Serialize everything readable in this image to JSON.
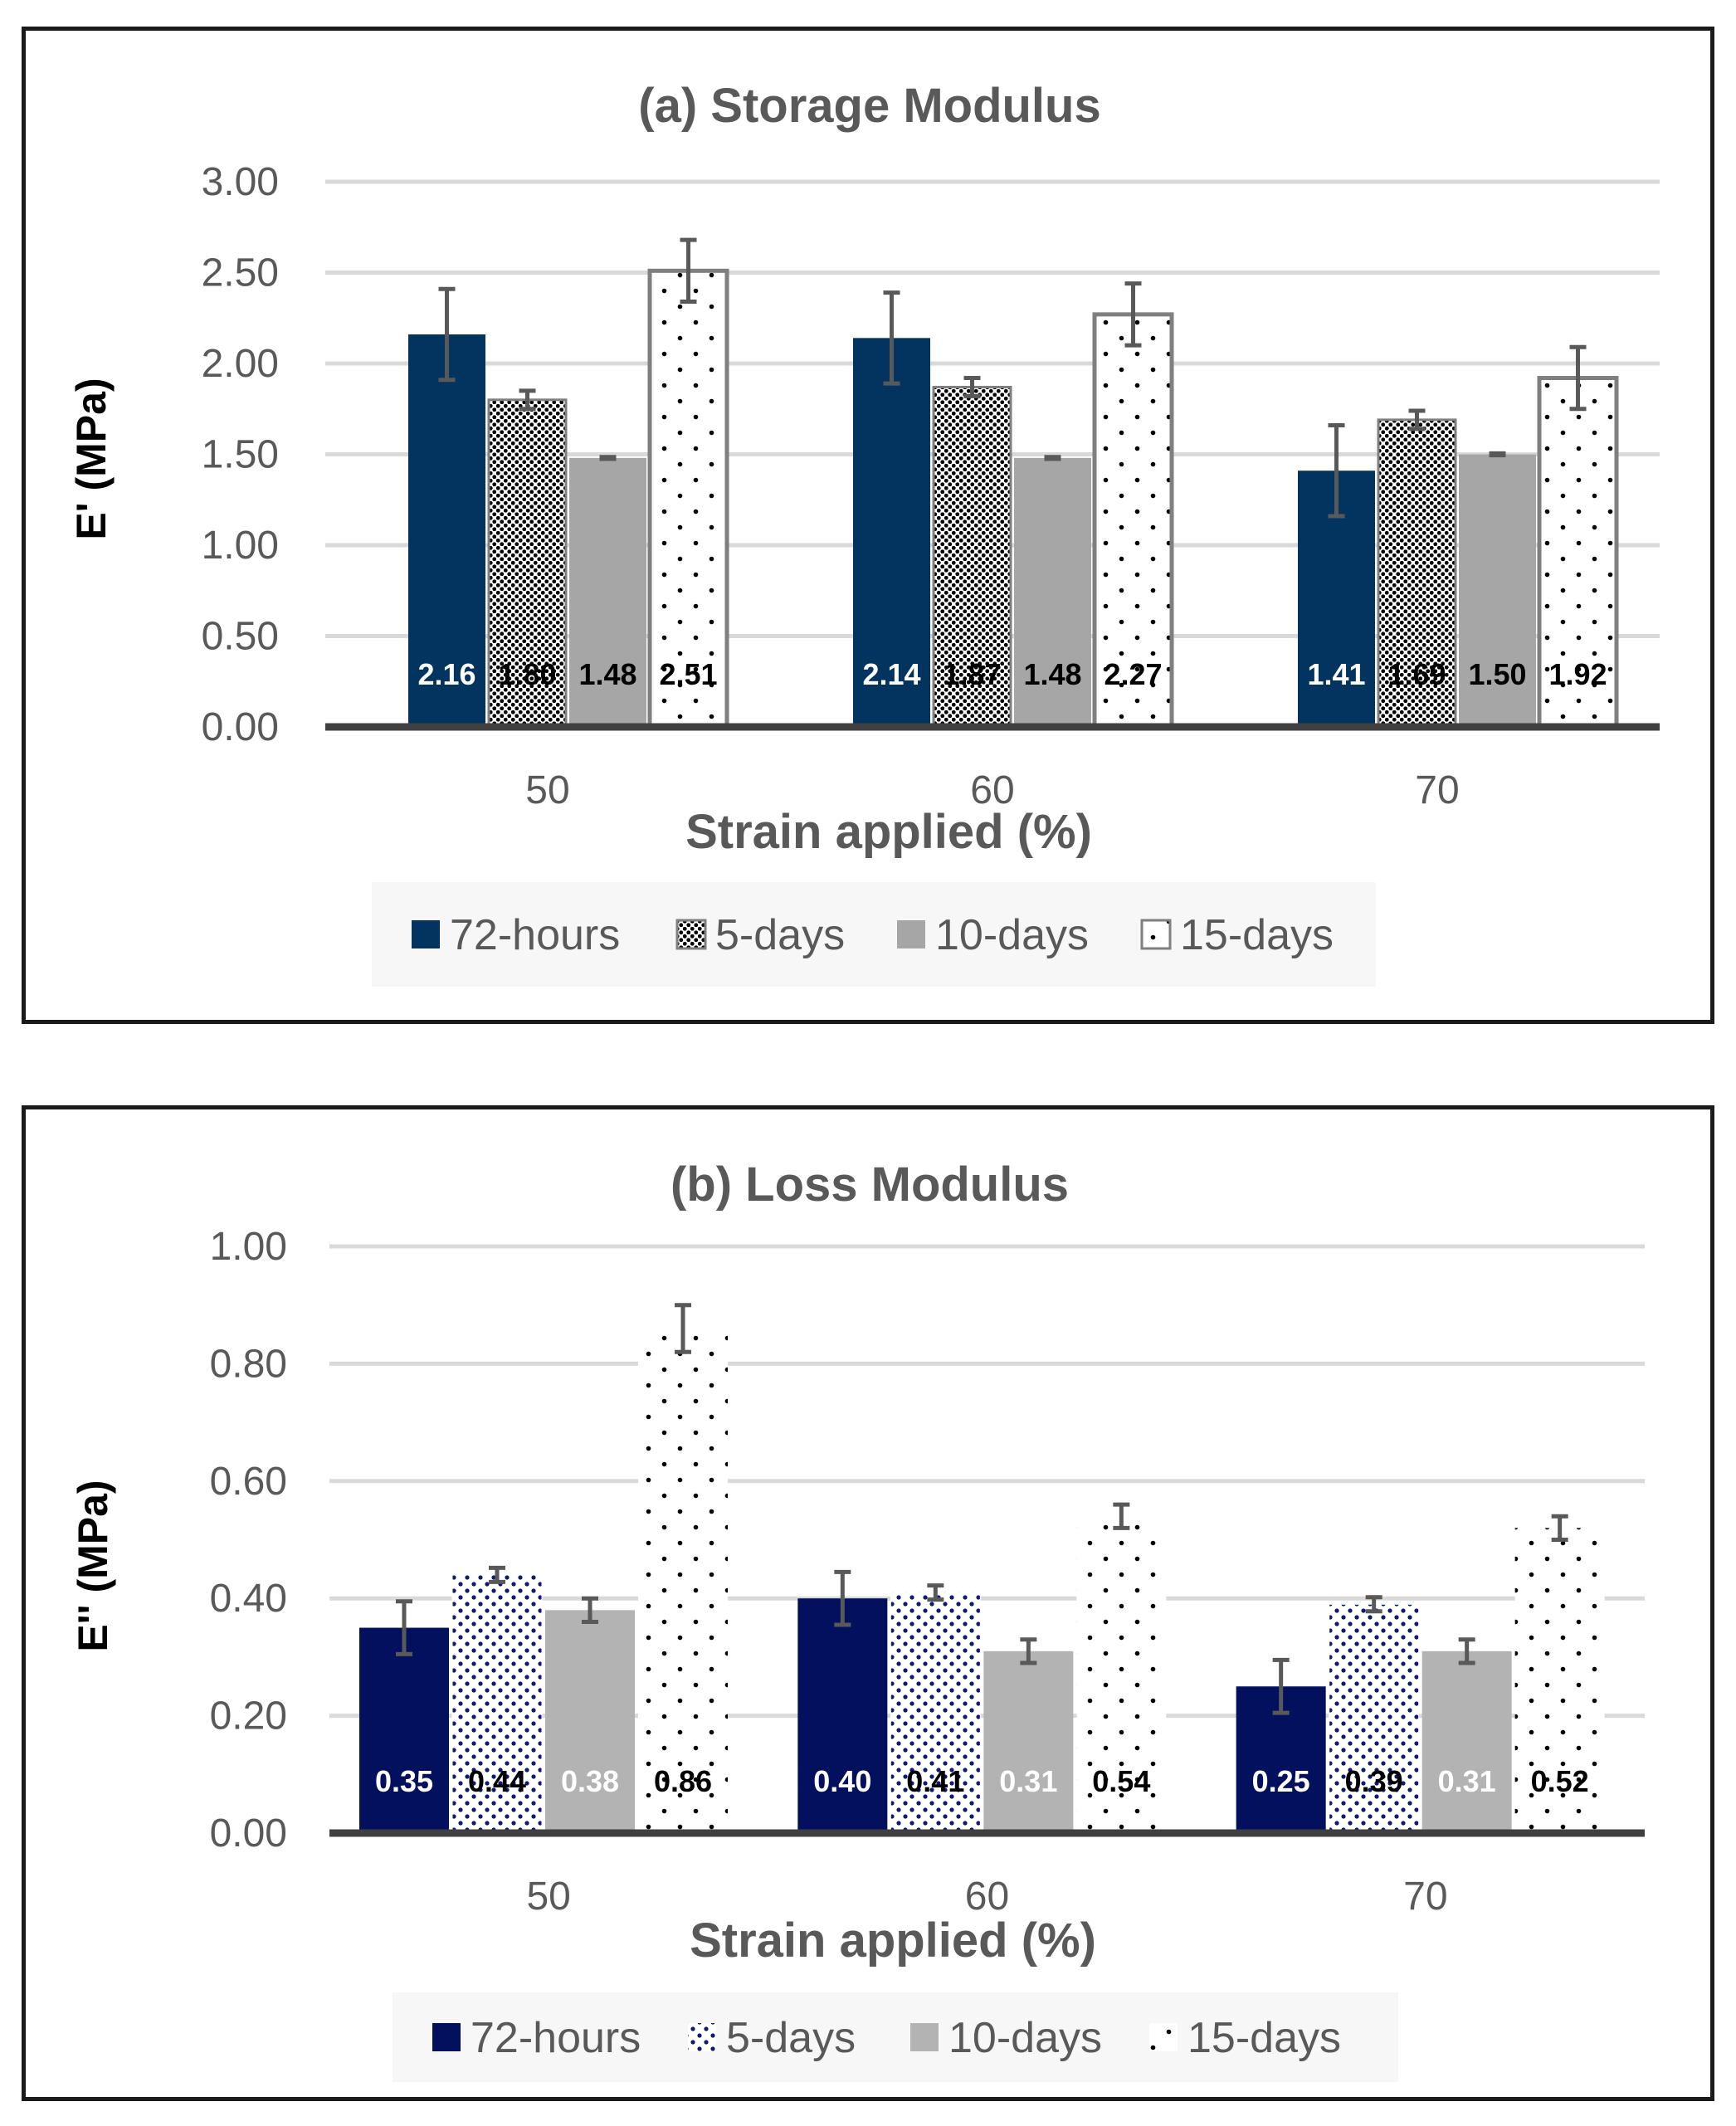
{
  "chart_data": [
    {
      "type": "bar",
      "title": "(a) Storage Modulus",
      "xlabel": "Strain applied (%)",
      "ylabel": "E' (MPa)",
      "categories": [
        "50",
        "60",
        "70"
      ],
      "ylim": [
        0,
        3
      ],
      "yticks": [
        "0.00",
        "0.50",
        "1.00",
        "1.50",
        "2.00",
        "2.50",
        "3.00"
      ],
      "grid": true,
      "legend_position": "bottom",
      "series": [
        {
          "name": "72-hours",
          "values": [
            2.16,
            2.14,
            1.41
          ],
          "labels": [
            "2.16",
            "2.14",
            "1.41"
          ],
          "errors": [
            0.25,
            0.25,
            0.25
          ],
          "color": "#03335f",
          "pattern": "solid",
          "label_color": "#ffffff"
        },
        {
          "name": "5-days",
          "values": [
            1.8,
            1.87,
            1.69
          ],
          "labels": [
            "1.80",
            "1.87",
            "1.69"
          ],
          "errors": [
            0.05,
            0.05,
            0.05
          ],
          "color": "#000000",
          "pattern": "dense-dots",
          "label_color": "#000000"
        },
        {
          "name": "10-days",
          "values": [
            1.48,
            1.48,
            1.5
          ],
          "labels": [
            "1.48",
            "1.48",
            "1.50"
          ],
          "errors": [
            0.005,
            0.005,
            0.005
          ],
          "color": "#a6a6a6",
          "pattern": "solid",
          "label_color": "#000000"
        },
        {
          "name": "15-days",
          "values": [
            2.51,
            2.27,
            1.92
          ],
          "labels": [
            "2.51",
            "2.27",
            "1.92"
          ],
          "errors": [
            0.17,
            0.17,
            0.17
          ],
          "color": "#7f7f7f",
          "pattern": "sparse-dots",
          "label_color": "#000000"
        }
      ]
    },
    {
      "type": "bar",
      "title": "(b) Loss Modulus",
      "xlabel": "Strain applied (%)",
      "ylabel": "E'' (MPa)",
      "categories": [
        "50",
        "60",
        "70"
      ],
      "ylim": [
        0,
        1
      ],
      "yticks": [
        "0.00",
        "0.20",
        "0.40",
        "0.60",
        "0.80",
        "1.00"
      ],
      "grid": true,
      "legend_position": "bottom",
      "series": [
        {
          "name": "72-hours",
          "values": [
            0.35,
            0.4,
            0.25
          ],
          "labels": [
            "0.35",
            "0.40",
            "0.25"
          ],
          "errors": [
            0.045,
            0.045,
            0.045
          ],
          "color": "#03105e",
          "pattern": "solid",
          "label_color": "#ffffff"
        },
        {
          "name": "5-days",
          "values": [
            0.44,
            0.41,
            0.39
          ],
          "labels": [
            "0.44",
            "0.41",
            "0.39"
          ],
          "errors": [
            0.012,
            0.012,
            0.012
          ],
          "color": "#0a1a7a",
          "pattern": "blue-dots",
          "label_color": "#000000"
        },
        {
          "name": "10-days",
          "values": [
            0.38,
            0.31,
            0.31
          ],
          "labels": [
            "0.38",
            "0.31",
            "0.31"
          ],
          "errors": [
            0.02,
            0.02,
            0.02
          ],
          "color": "#b3b3b3",
          "pattern": "solid",
          "label_color": "#ffffff"
        },
        {
          "name": "15-days",
          "values": [
            0.86,
            0.54,
            0.52
          ],
          "labels": [
            "0.86",
            "0.54",
            "0.52"
          ],
          "errors": [
            0.04,
            0.02,
            0.02
          ],
          "color": "#000000",
          "pattern": "sparse-dots-noborder",
          "label_color": "#000000"
        }
      ]
    }
  ]
}
